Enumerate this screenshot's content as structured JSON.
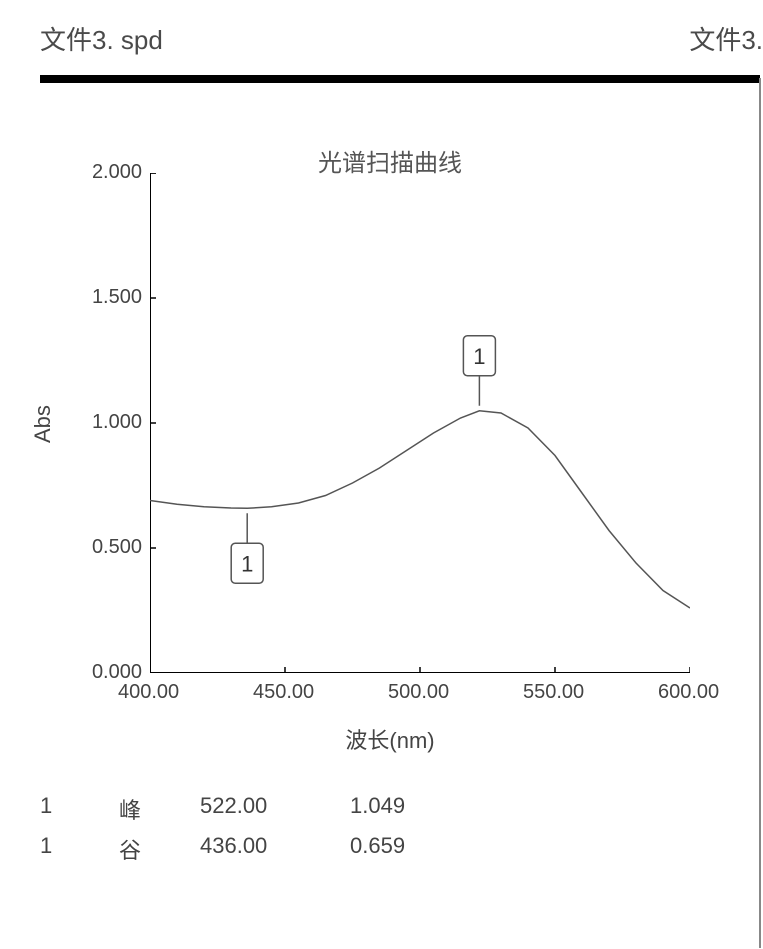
{
  "header": {
    "left": "文件3. spd",
    "right": "文件3."
  },
  "chart": {
    "type": "line",
    "title": "光谱扫描曲线",
    "xlabel": "波长(nm)",
    "ylabel": "Abs",
    "title_fontsize": 24,
    "label_fontsize": 22,
    "tick_fontsize": 20,
    "xlim": [
      400,
      600
    ],
    "ylim": [
      0,
      2
    ],
    "xticks": [
      400,
      450,
      500,
      550,
      600
    ],
    "xtick_labels": [
      "400.00",
      "450.00",
      "500.00",
      "550.00",
      "600.00"
    ],
    "yticks": [
      0,
      0.5,
      1.0,
      1.5,
      2.0
    ],
    "ytick_labels": [
      "0.000",
      "0.500",
      "1.000",
      "1.500",
      "2.000"
    ],
    "line_color": "#555555",
    "line_width": 1.5,
    "axis_color": "#000000",
    "background_color": "#ffffff",
    "series": [
      {
        "x": 400,
        "y": 0.69
      },
      {
        "x": 410,
        "y": 0.675
      },
      {
        "x": 420,
        "y": 0.665
      },
      {
        "x": 430,
        "y": 0.66
      },
      {
        "x": 436,
        "y": 0.659
      },
      {
        "x": 445,
        "y": 0.665
      },
      {
        "x": 455,
        "y": 0.68
      },
      {
        "x": 465,
        "y": 0.71
      },
      {
        "x": 475,
        "y": 0.76
      },
      {
        "x": 485,
        "y": 0.82
      },
      {
        "x": 495,
        "y": 0.89
      },
      {
        "x": 505,
        "y": 0.96
      },
      {
        "x": 515,
        "y": 1.02
      },
      {
        "x": 522,
        "y": 1.049
      },
      {
        "x": 530,
        "y": 1.04
      },
      {
        "x": 540,
        "y": 0.98
      },
      {
        "x": 550,
        "y": 0.87
      },
      {
        "x": 560,
        "y": 0.72
      },
      {
        "x": 570,
        "y": 0.57
      },
      {
        "x": 580,
        "y": 0.44
      },
      {
        "x": 590,
        "y": 0.33
      },
      {
        "x": 600,
        "y": 0.26
      }
    ],
    "markers": [
      {
        "id": "1",
        "kind": "peak",
        "x": 522,
        "y": 1.049,
        "label_box": {
          "border_color": "#555555",
          "fill": "#ffffff",
          "fontsize": 22
        }
      },
      {
        "id": "1",
        "kind": "valley",
        "x": 436,
        "y": 0.659,
        "label_box": {
          "border_color": "#555555",
          "fill": "#ffffff",
          "fontsize": 22
        }
      }
    ]
  },
  "table": {
    "rows": [
      {
        "id": "1",
        "type": "峰",
        "x": "522.00",
        "y": "1.049"
      },
      {
        "id": "1",
        "type": "谷",
        "x": "436.00",
        "y": "0.659"
      }
    ]
  },
  "colors": {
    "text": "#444444",
    "rule": "#000000",
    "right_border": "#888888"
  }
}
